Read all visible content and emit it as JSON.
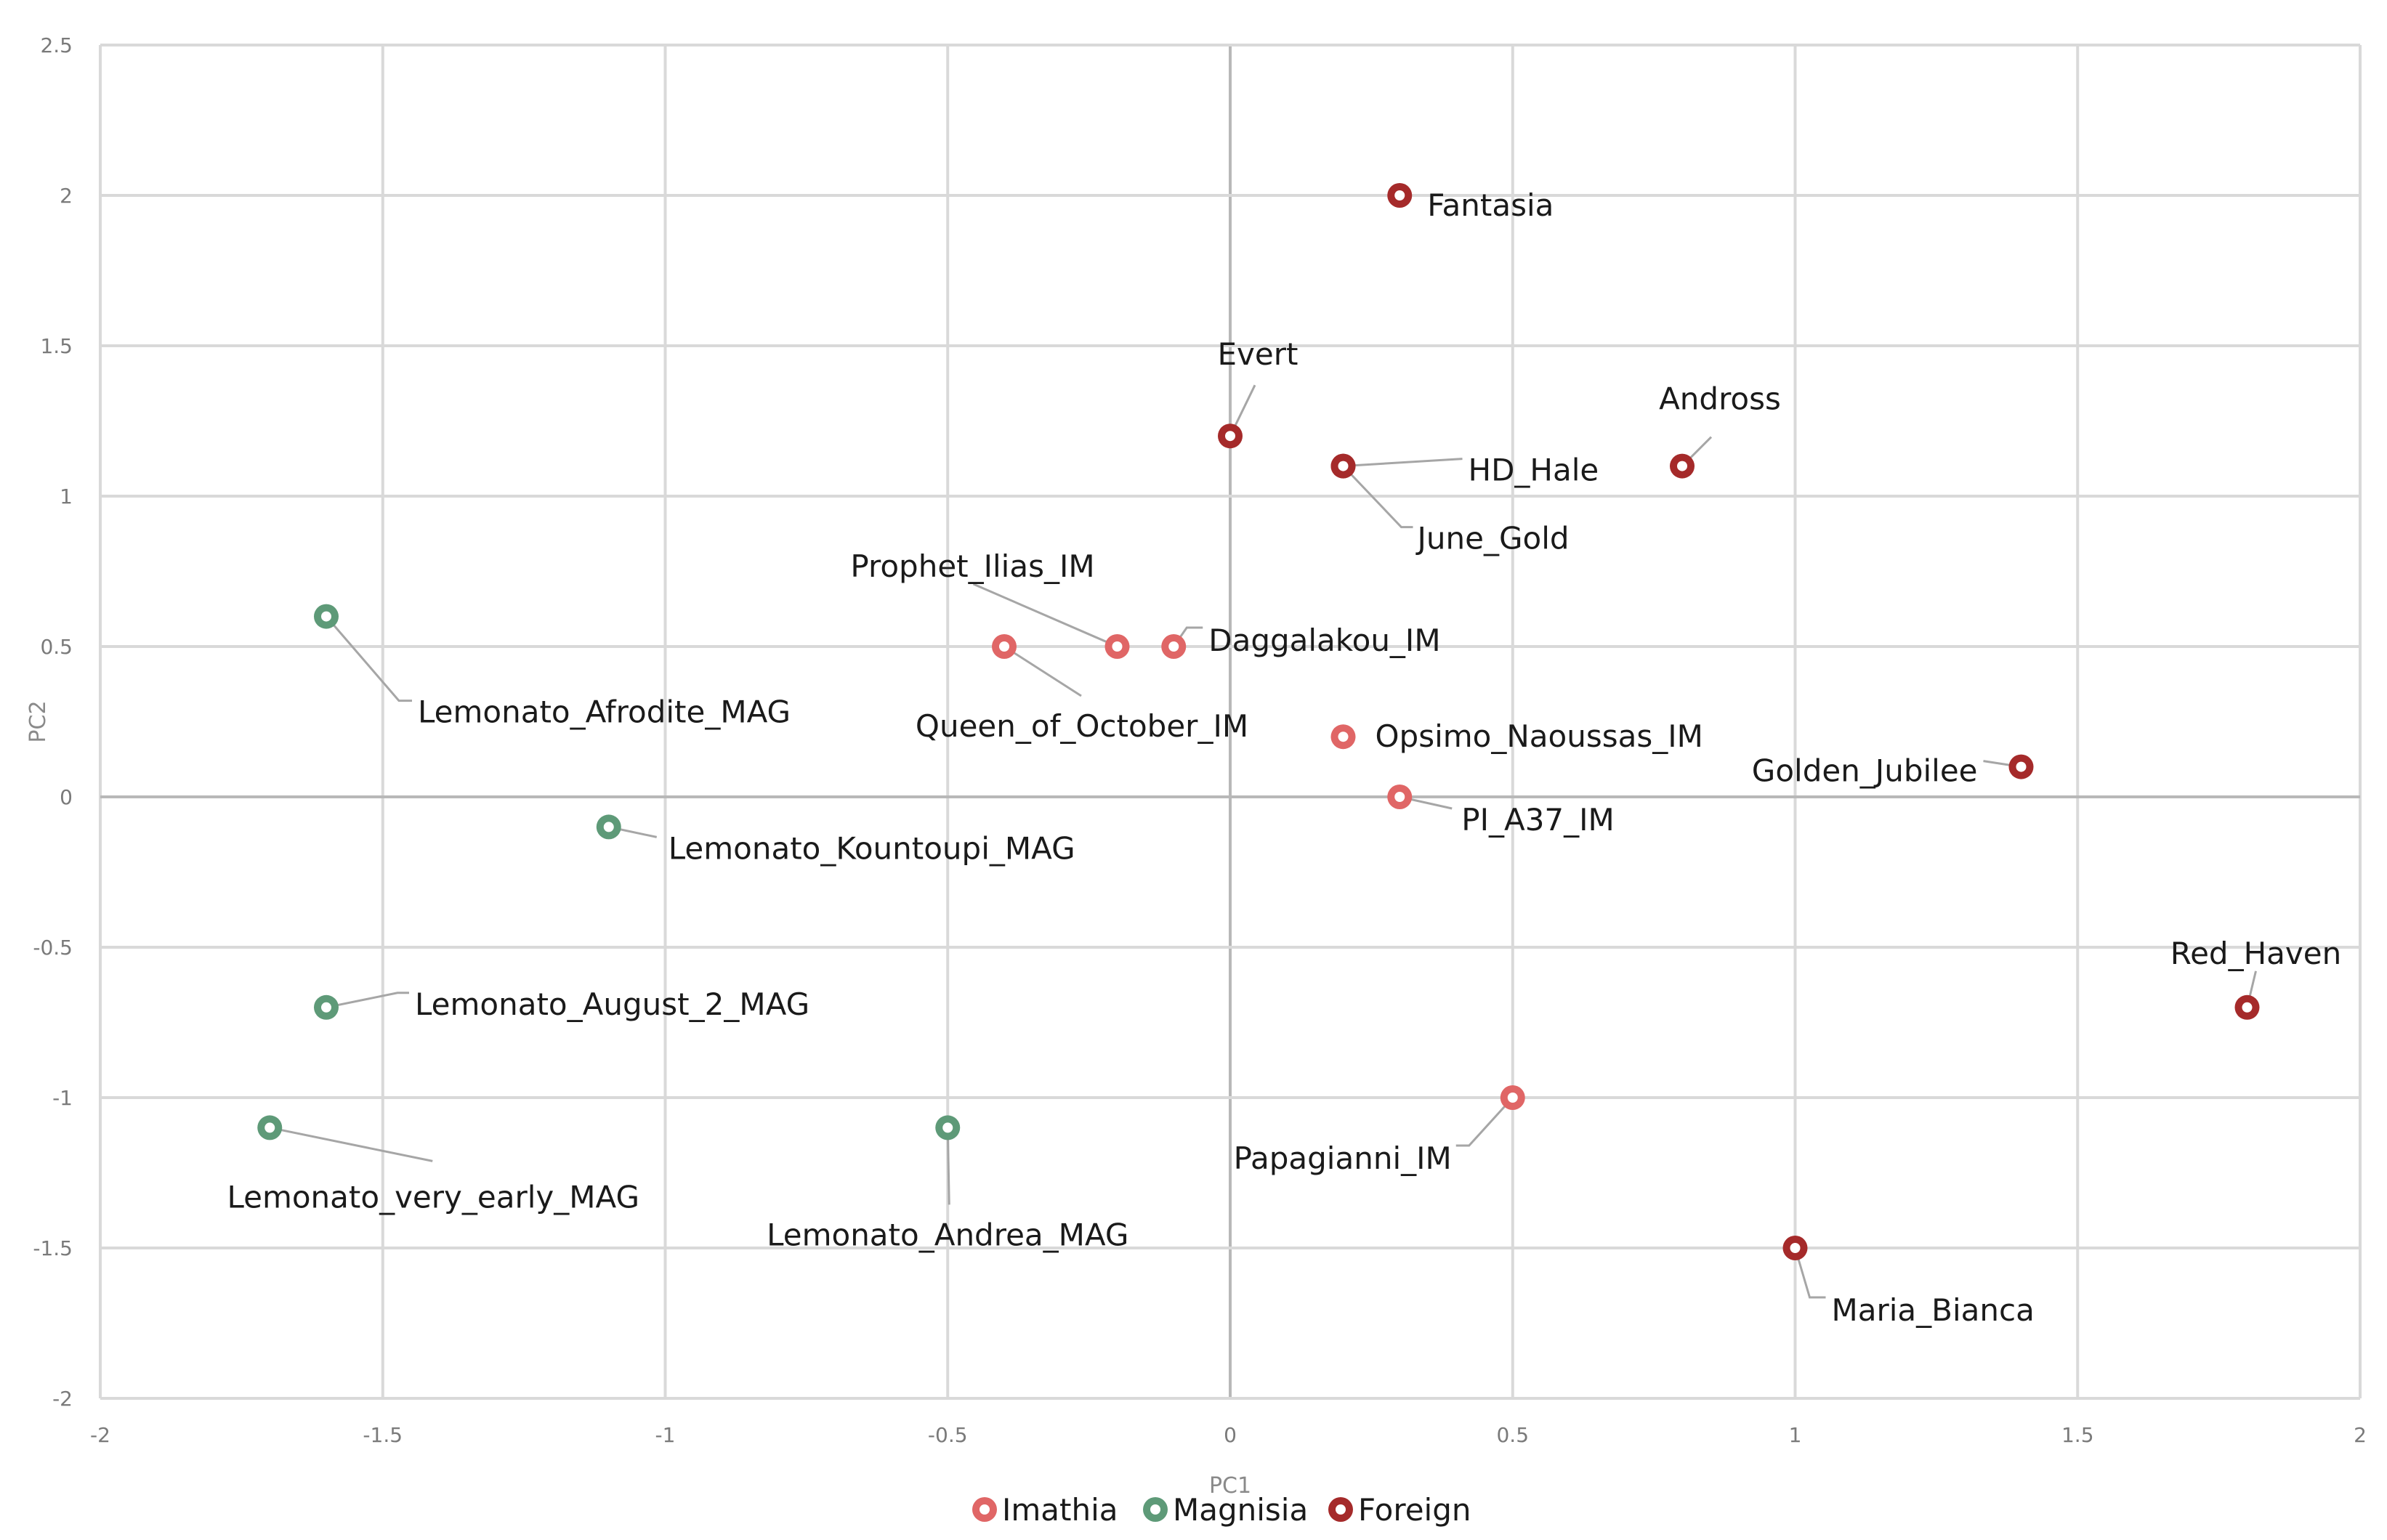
{
  "chart_data": {
    "type": "scatter",
    "title": "",
    "xlabel": "PC1",
    "ylabel": "PC2",
    "xlim": [
      -2,
      2
    ],
    "ylim": [
      -2,
      2.5
    ],
    "xticks": [
      -2,
      -1.5,
      -1,
      -0.5,
      0,
      0.5,
      1,
      1.5,
      2
    ],
    "yticks": [
      -2,
      -1.5,
      -1,
      -0.5,
      0,
      0.5,
      1,
      1.5,
      2,
      2.5
    ],
    "xtick_labels": [
      "-2",
      "-1.5",
      "-1",
      "-0.5",
      "0",
      "0.5",
      "1",
      "1.5",
      "2"
    ],
    "ytick_labels": [
      "-2",
      "-1.5",
      "-1",
      "-0.5",
      "0",
      "0.5",
      "1",
      "1.5",
      "2",
      "2.5"
    ],
    "grid": true,
    "legend_position": "bottom",
    "series": [
      {
        "name": "Imathia",
        "color": "#e06666",
        "points": [
          {
            "label": "Prophet_Ilias_IM",
            "x": -0.2,
            "y": 0.5
          },
          {
            "label": "Daggalakou_IM",
            "x": -0.1,
            "y": 0.5
          },
          {
            "label": "Queen_of_October_IM",
            "x": -0.4,
            "y": 0.5
          },
          {
            "label": "Opsimo_Naoussas_IM",
            "x": 0.2,
            "y": 0.2
          },
          {
            "label": "PI_A37_IM",
            "x": 0.3,
            "y": 0.0
          },
          {
            "label": "Papagianni_IM",
            "x": 0.5,
            "y": -1.0
          }
        ]
      },
      {
        "name": "Magnisia",
        "color": "#5e9a78",
        "points": [
          {
            "label": "Lemonato_Afrodite_MAG",
            "x": -1.6,
            "y": 0.6
          },
          {
            "label": "Lemonato_Kountoupi_MAG",
            "x": -1.1,
            "y": -0.1
          },
          {
            "label": "Lemonato_August_2_MAG",
            "x": -1.6,
            "y": -0.7
          },
          {
            "label": "Lemonato_very_early_MAG",
            "x": -1.7,
            "y": -1.1
          },
          {
            "label": "Lemonato_Andrea_MAG",
            "x": -0.5,
            "y": -1.1
          }
        ]
      },
      {
        "name": "Foreign",
        "color": "#a52a2a",
        "points": [
          {
            "label": "Fantasia",
            "x": 0.3,
            "y": 2.0
          },
          {
            "label": "Evert",
            "x": 0.0,
            "y": 1.2
          },
          {
            "label": "HD_Hale",
            "x": 0.2,
            "y": 1.1
          },
          {
            "label": "June_Gold",
            "x": 0.2,
            "y": 1.1
          },
          {
            "label": "Andross",
            "x": 0.8,
            "y": 1.1
          },
          {
            "label": "Golden_Jubilee",
            "x": 1.4,
            "y": 0.1
          },
          {
            "label": "Red_Haven",
            "x": 1.8,
            "y": -0.7
          },
          {
            "label": "Maria_Bianca",
            "x": 1.0,
            "y": -1.5
          }
        ]
      }
    ]
  }
}
